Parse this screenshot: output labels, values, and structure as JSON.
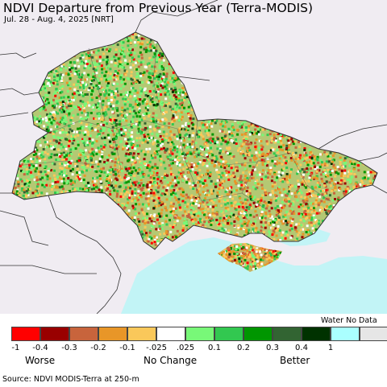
{
  "map": {
    "title": "NDVI Departure from Previous Year (Terra-MODIS)",
    "subtitle": "Jul. 28 - Aug. 4, 2025 [NRT]",
    "colors": {
      "sea": "#c2f4f6",
      "outside_land": "#f0ecf2",
      "border": "#333333"
    }
  },
  "legend": {
    "water_nodata_label": "Water No Data",
    "classes": [
      {
        "color": "#ff0000"
      },
      {
        "color": "#990000"
      },
      {
        "color": "#c8643c"
      },
      {
        "color": "#e89628"
      },
      {
        "color": "#fac85a"
      },
      {
        "color": "#ffffff"
      },
      {
        "color": "#78f878"
      },
      {
        "color": "#32c850"
      },
      {
        "color": "#009600"
      },
      {
        "color": "#326432"
      },
      {
        "color": "#003200"
      },
      {
        "color": "#aaffff"
      },
      {
        "color": "#e6e6e6"
      }
    ],
    "ticks": [
      "-1",
      "-0.4",
      "-0.3",
      "-0.2",
      "-0.1",
      "-.025",
      ".025",
      "0.1",
      "0.2",
      "0.3",
      "0.4",
      "1"
    ],
    "labels": {
      "worse": "Worse",
      "no_change": "No Change",
      "better": "Better"
    }
  },
  "footer": {
    "source": "Source: NDVI MODIS-Terra at 250-m"
  }
}
